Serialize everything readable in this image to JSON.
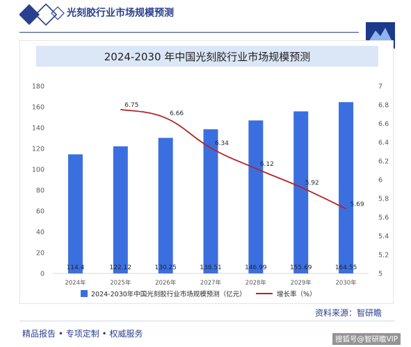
{
  "header": {
    "title": "光刻胶行业市场规模预测"
  },
  "colors": {
    "brand": "#2a3f8f",
    "bar": "#3b6fe0",
    "line": "#b32225",
    "title_bar": "#dbe6f6"
  },
  "source": {
    "text": "资料来源：智研瞻"
  },
  "footer": {
    "tagline": "精品报告 • 专项定制 • 权威服务",
    "watermark": "搜狐号@智研瞻VIP"
  },
  "chart_data": {
    "type": "bar",
    "title": "2024-2030 年中国光刻胶行业市场规模预测",
    "categories": [
      "2024年",
      "2025年",
      "2026年",
      "2027年",
      "2028年",
      "2029年",
      "2030年"
    ],
    "series": [
      {
        "name": "2024-2030年中国光刻胶行业市场规模预测（亿元）",
        "type": "bar",
        "axis": "left",
        "values": [
          114.4,
          122.12,
          130.25,
          138.51,
          146.99,
          155.69,
          164.55
        ],
        "labels": [
          "114.4",
          "122.12",
          "130.25",
          "138.51",
          "146.99",
          "155.69",
          "164.55"
        ]
      },
      {
        "name": "增长率（%）",
        "type": "line",
        "axis": "right",
        "values": [
          null,
          6.75,
          6.66,
          6.34,
          6.12,
          5.92,
          5.69
        ],
        "labels": [
          "",
          "6.75",
          "6.66",
          "6.34",
          "6.12",
          "5.92",
          "5.69"
        ]
      }
    ],
    "y_left": {
      "min": 0,
      "max": 180,
      "ticks": [
        "0",
        "20",
        "40",
        "60",
        "80",
        "100",
        "120",
        "140",
        "160",
        "180"
      ]
    },
    "y_right": {
      "min": 5,
      "max": 7,
      "ticks": [
        "5",
        "5.2",
        "5.4",
        "5.6",
        "5.8",
        "6",
        "6.2",
        "6.4",
        "6.6",
        "6.8",
        "7"
      ]
    },
    "grid": false,
    "legend": "bottom"
  }
}
